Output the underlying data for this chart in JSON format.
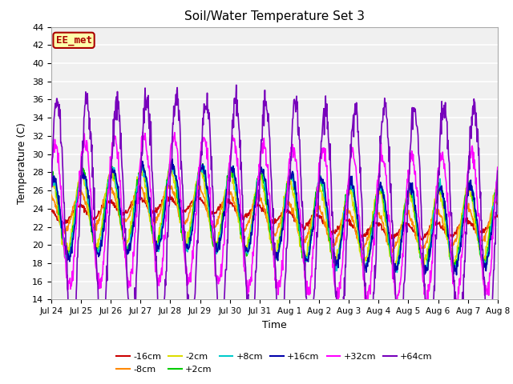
{
  "title": "Soil/Water Temperature Set 3",
  "xlabel": "Time",
  "ylabel": "Temperature (C)",
  "ylim": [
    14,
    44
  ],
  "yticks": [
    14,
    16,
    18,
    20,
    22,
    24,
    26,
    28,
    30,
    32,
    34,
    36,
    38,
    40,
    42,
    44
  ],
  "bg_color": "#f0f0f0",
  "plot_bg_color": "#f0f0f0",
  "grid_color": "white",
  "series": [
    {
      "label": "-16cm",
      "color": "#cc0000",
      "lw": 1.2
    },
    {
      "label": "-8cm",
      "color": "#ff8800",
      "lw": 1.2
    },
    {
      "label": "-2cm",
      "color": "#dddd00",
      "lw": 1.2
    },
    {
      "label": "+2cm",
      "color": "#00cc00",
      "lw": 1.2
    },
    {
      "label": "+8cm",
      "color": "#00cccc",
      "lw": 1.2
    },
    {
      "label": "+16cm",
      "color": "#0000aa",
      "lw": 1.2
    },
    {
      "label": "+32cm",
      "color": "#ff00ff",
      "lw": 1.2
    },
    {
      "label": "+64cm",
      "color": "#7700bb",
      "lw": 1.2
    }
  ],
  "watermark": {
    "text": "EE_met",
    "facecolor": "#ffffaa",
    "edgecolor": "#aa0000",
    "textcolor": "#aa0000"
  },
  "xtick_labels": [
    "Jul 24",
    "Jul 25",
    "Jul 26",
    "Jul 27",
    "Jul 28",
    "Jul 29",
    "Jul 30",
    "Jul 31",
    "Aug 1",
    "Aug 2",
    "Aug 3",
    "Aug 4",
    "Aug 5",
    "Aug 6",
    "Aug 7",
    "Aug 8"
  ],
  "n_points": 1000,
  "seed": 42
}
